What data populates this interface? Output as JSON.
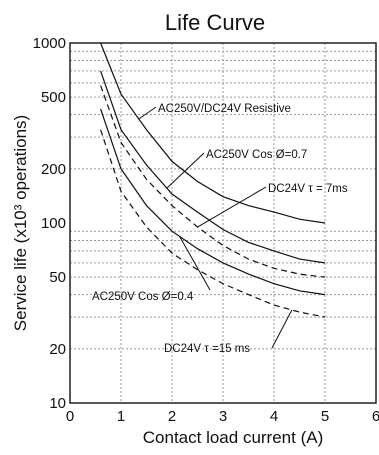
{
  "chart_data": {
    "type": "line",
    "title": "Life Curve",
    "xlabel": "Contact load current (A)",
    "ylabel": "Service life (x10³ operations)",
    "xlim": [
      0,
      6
    ],
    "ylim": [
      10,
      1000
    ],
    "yscale": "log",
    "x_ticks": [
      "0",
      "1",
      "2",
      "3",
      "4",
      "5",
      "6"
    ],
    "y_ticks": [
      "1000",
      "500",
      "200",
      "100",
      "50",
      "20",
      "10"
    ],
    "grid": true,
    "series": [
      {
        "name": "AC250V/DC24V Resistive",
        "style": "solid",
        "points": [
          [
            0.6,
            1000
          ],
          [
            1,
            520
          ],
          [
            1.5,
            330
          ],
          [
            2,
            220
          ],
          [
            2.5,
            170
          ],
          [
            3,
            140
          ],
          [
            3.5,
            125
          ],
          [
            4,
            115
          ],
          [
            4.5,
            105
          ],
          [
            5,
            100
          ]
        ]
      },
      {
        "name": "AC250V Cos Ø=0.7",
        "style": "solid",
        "points": [
          [
            0.6,
            700
          ],
          [
            1,
            330
          ],
          [
            1.5,
            210
          ],
          [
            2,
            145
          ],
          [
            2.5,
            115
          ],
          [
            3,
            92
          ],
          [
            3.5,
            78
          ],
          [
            4,
            70
          ],
          [
            4.5,
            63
          ],
          [
            5,
            60
          ]
        ]
      },
      {
        "name": "DC24V τ = 7ms",
        "style": "dashed",
        "points": [
          [
            0.6,
            580
          ],
          [
            1,
            280
          ],
          [
            1.5,
            175
          ],
          [
            2,
            125
          ],
          [
            2.5,
            95
          ],
          [
            3,
            75
          ],
          [
            3.5,
            63
          ],
          [
            4,
            56
          ],
          [
            4.5,
            52
          ],
          [
            5,
            50
          ]
        ]
      },
      {
        "name": "AC250V Cos Ø=0.4",
        "style": "solid",
        "points": [
          [
            0.6,
            430
          ],
          [
            1,
            200
          ],
          [
            1.5,
            125
          ],
          [
            2,
            90
          ],
          [
            2.5,
            72
          ],
          [
            3,
            60
          ],
          [
            3.5,
            52
          ],
          [
            4,
            46
          ],
          [
            4.5,
            42
          ],
          [
            5,
            40
          ]
        ]
      },
      {
        "name": "DC24V τ =15 ms",
        "style": "dashed",
        "points": [
          [
            0.6,
            330
          ],
          [
            1,
            150
          ],
          [
            1.5,
            95
          ],
          [
            2,
            68
          ],
          [
            2.5,
            55
          ],
          [
            3,
            46
          ],
          [
            3.5,
            40
          ],
          [
            4,
            35
          ],
          [
            4.5,
            32
          ],
          [
            5,
            30
          ]
        ]
      }
    ],
    "annotations": [
      {
        "text": "AC250V/DC24V Resistive",
        "series": 0,
        "at_x": 1.35
      },
      {
        "text": "AC250V Cos Ø=0.7",
        "series": 1,
        "at_x": 1.9
      },
      {
        "text": "DC24V   τ = 7ms",
        "series": 2,
        "at_x": 2.5
      },
      {
        "text": "AC250V Cos Ø=0.4",
        "series": 3,
        "at_x": 2.15
      },
      {
        "text": "DC24V   τ =15 ms",
        "series": 4,
        "at_x": 4.35
      }
    ]
  }
}
